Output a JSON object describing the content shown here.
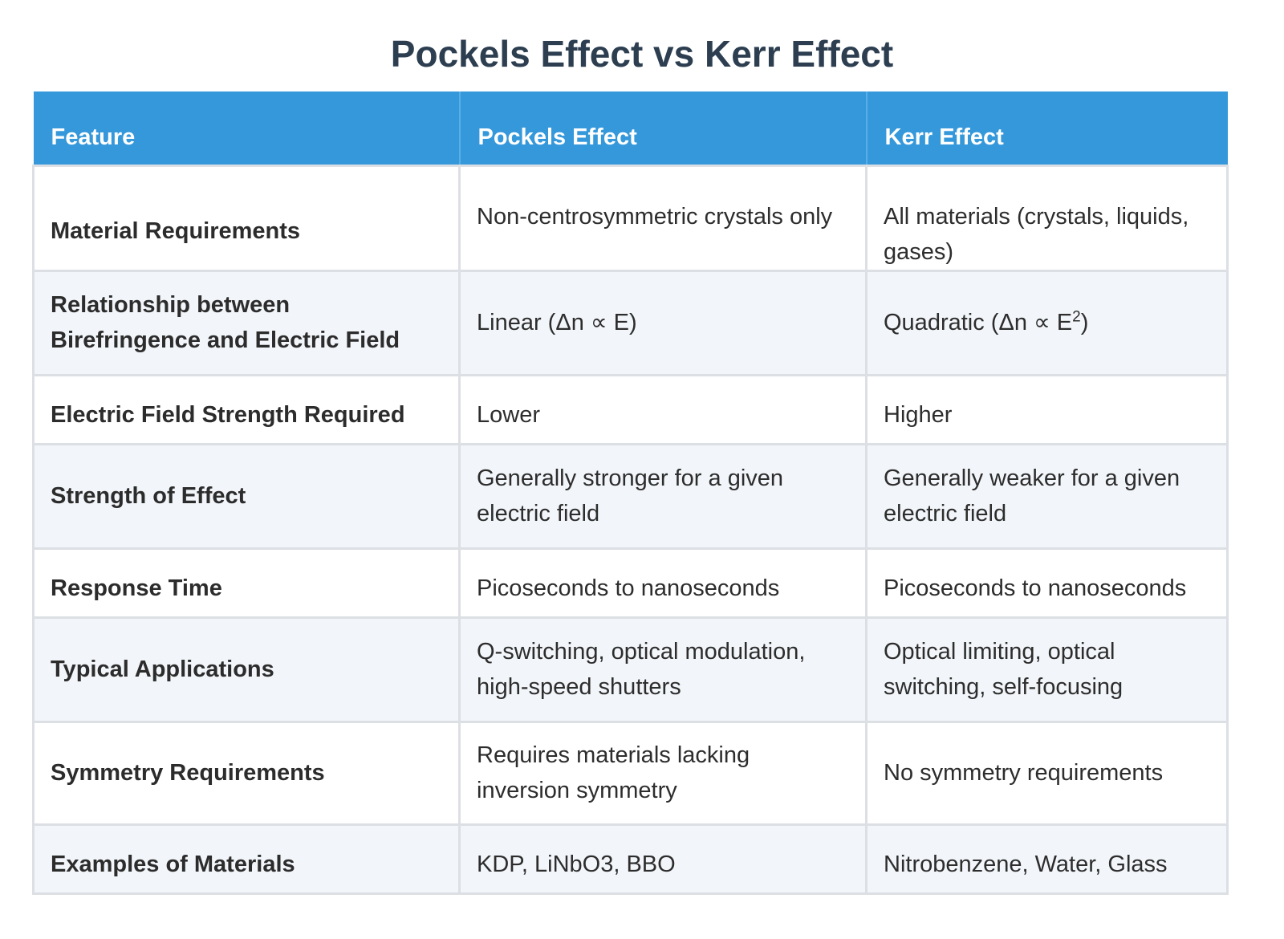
{
  "title": "Pockels Effect vs Kerr Effect",
  "headers": [
    "Feature",
    "Pockels Effect",
    "Kerr Effect"
  ],
  "rows": [
    {
      "feature": "Material Requirements",
      "pockels": "Non-centrosymmetric crystals only",
      "kerr": "All materials (crystals, liquids, gases)"
    },
    {
      "feature": "Relationship between Birefringence and Electric Field",
      "pockels": "Linear (Δn ∝ E)",
      "kerr_prefix": "Quadratic (Δn ∝ E",
      "kerr_sup": "2",
      "kerr_suffix": ")"
    },
    {
      "feature": "Electric Field Strength Required",
      "pockels": "Lower",
      "kerr": "Higher"
    },
    {
      "feature": "Strength of Effect",
      "pockels": "Generally stronger for a given electric field",
      "kerr": "Generally weaker for a given electric field"
    },
    {
      "feature": "Response Time",
      "pockels": "Picoseconds to nanoseconds",
      "kerr": "Picoseconds to nanoseconds"
    },
    {
      "feature": "Typical Applications",
      "pockels": "Q-switching, optical modulation, high-speed shutters",
      "kerr": "Optical limiting, optical switching, self-focusing"
    },
    {
      "feature": "Symmetry Requirements",
      "pockels": "Requires materials lacking inversion symmetry",
      "kerr": "No symmetry requirements"
    },
    {
      "feature": "Examples of Materials",
      "pockels": "KDP, LiNbO3, BBO",
      "kerr": "Nitrobenzene, Water, Glass"
    }
  ],
  "colors": {
    "header_bg": "#3498db",
    "title": "#2c3e50",
    "row_alt": "#f2f5f9"
  }
}
